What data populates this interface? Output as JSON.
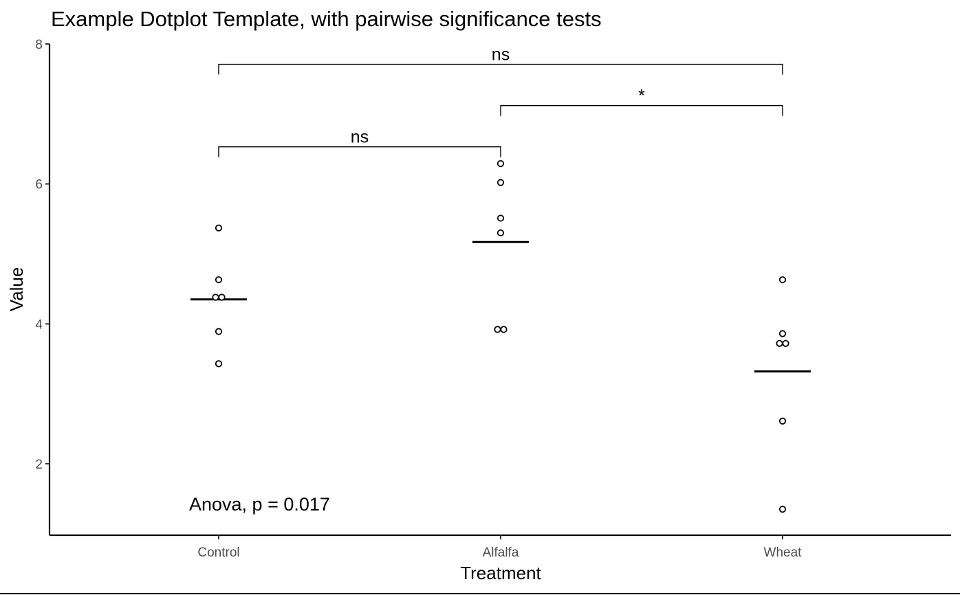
{
  "chart_data": {
    "type": "scatter",
    "subtype": "dotplot",
    "title": "Example Dotplot Template, with pairwise significance tests",
    "xlabel": "Treatment",
    "ylabel": "Value",
    "ylim": [
      1,
      8
    ],
    "yticks": [
      2,
      4,
      6,
      8
    ],
    "categories": [
      "Control",
      "Alfalfa",
      "Wheat"
    ],
    "points": [
      {
        "category": "Control",
        "values": [
          5.37,
          4.63,
          4.38,
          4.38,
          3.89,
          3.43
        ]
      },
      {
        "category": "Alfalfa",
        "values": [
          6.29,
          6.02,
          5.51,
          5.3,
          3.92,
          3.92
        ]
      },
      {
        "category": "Wheat",
        "values": [
          4.63,
          3.86,
          3.72,
          3.72,
          2.61,
          1.35
        ]
      }
    ],
    "means": [
      {
        "category": "Control",
        "value": 4.35
      },
      {
        "category": "Alfalfa",
        "value": 5.17
      },
      {
        "category": "Wheat",
        "value": 3.32
      }
    ],
    "comparisons": [
      {
        "group1": "Control",
        "group2": "Alfalfa",
        "label": "ns",
        "y": 6.53
      },
      {
        "group1": "Alfalfa",
        "group2": "Wheat",
        "label": "*",
        "y": 7.12
      },
      {
        "group1": "Control",
        "group2": "Wheat",
        "label": "ns",
        "y": 7.71
      }
    ],
    "annotation": "Anova, p = 0.017",
    "legend": "none",
    "grid": false,
    "colors": {
      "points_fill": "#ffffff",
      "points_stroke": "#000000",
      "axis": "#000000",
      "tick_labels": "#4d4d4d"
    }
  }
}
